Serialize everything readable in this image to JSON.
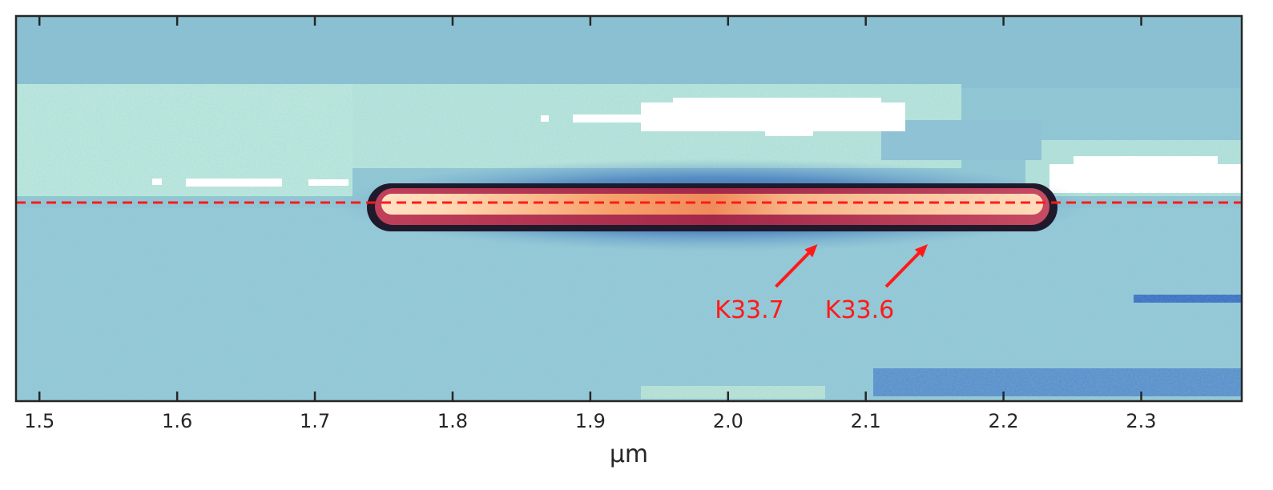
{
  "chart_data": {
    "type": "heatmap",
    "title": "",
    "xlabel": "μm",
    "ylabel": "",
    "xlim": [
      1.483,
      2.373
    ],
    "x_ticks": [
      {
        "value": 1.5,
        "label": "1.5"
      },
      {
        "value": 1.6,
        "label": "1.6"
      },
      {
        "value": 1.7,
        "label": "1.7"
      },
      {
        "value": 1.8,
        "label": "1.8"
      },
      {
        "value": 1.9,
        "label": "1.9"
      },
      {
        "value": 2.0,
        "label": "2.0"
      },
      {
        "value": 2.1,
        "label": "2.1"
      },
      {
        "value": 2.2,
        "label": "2.2"
      },
      {
        "value": 2.3,
        "label": "2.3"
      }
    ],
    "y_tick_labels": [],
    "grid": false,
    "colormap": "icefire",
    "trace": {
      "x_start": 1.745,
      "x_end": 2.23,
      "peak_x": 1.77,
      "dip_x": 2.06
    },
    "reference_line": {
      "style": "dashed",
      "color": "#ff1a1a"
    },
    "annotations": [
      {
        "text": "K33.7",
        "x": 2.065
      },
      {
        "text": "K33.6",
        "x": 2.145
      }
    ]
  },
  "colors": {
    "annotation": "#ff1a1a",
    "axes": "#262626",
    "background_light": "#b8e6dc",
    "background_mid": "#86c3d2",
    "trace_core": "#fbd3b0",
    "trace_edge": "#7a1c3c",
    "trace_halo": "#2d4f9a"
  }
}
